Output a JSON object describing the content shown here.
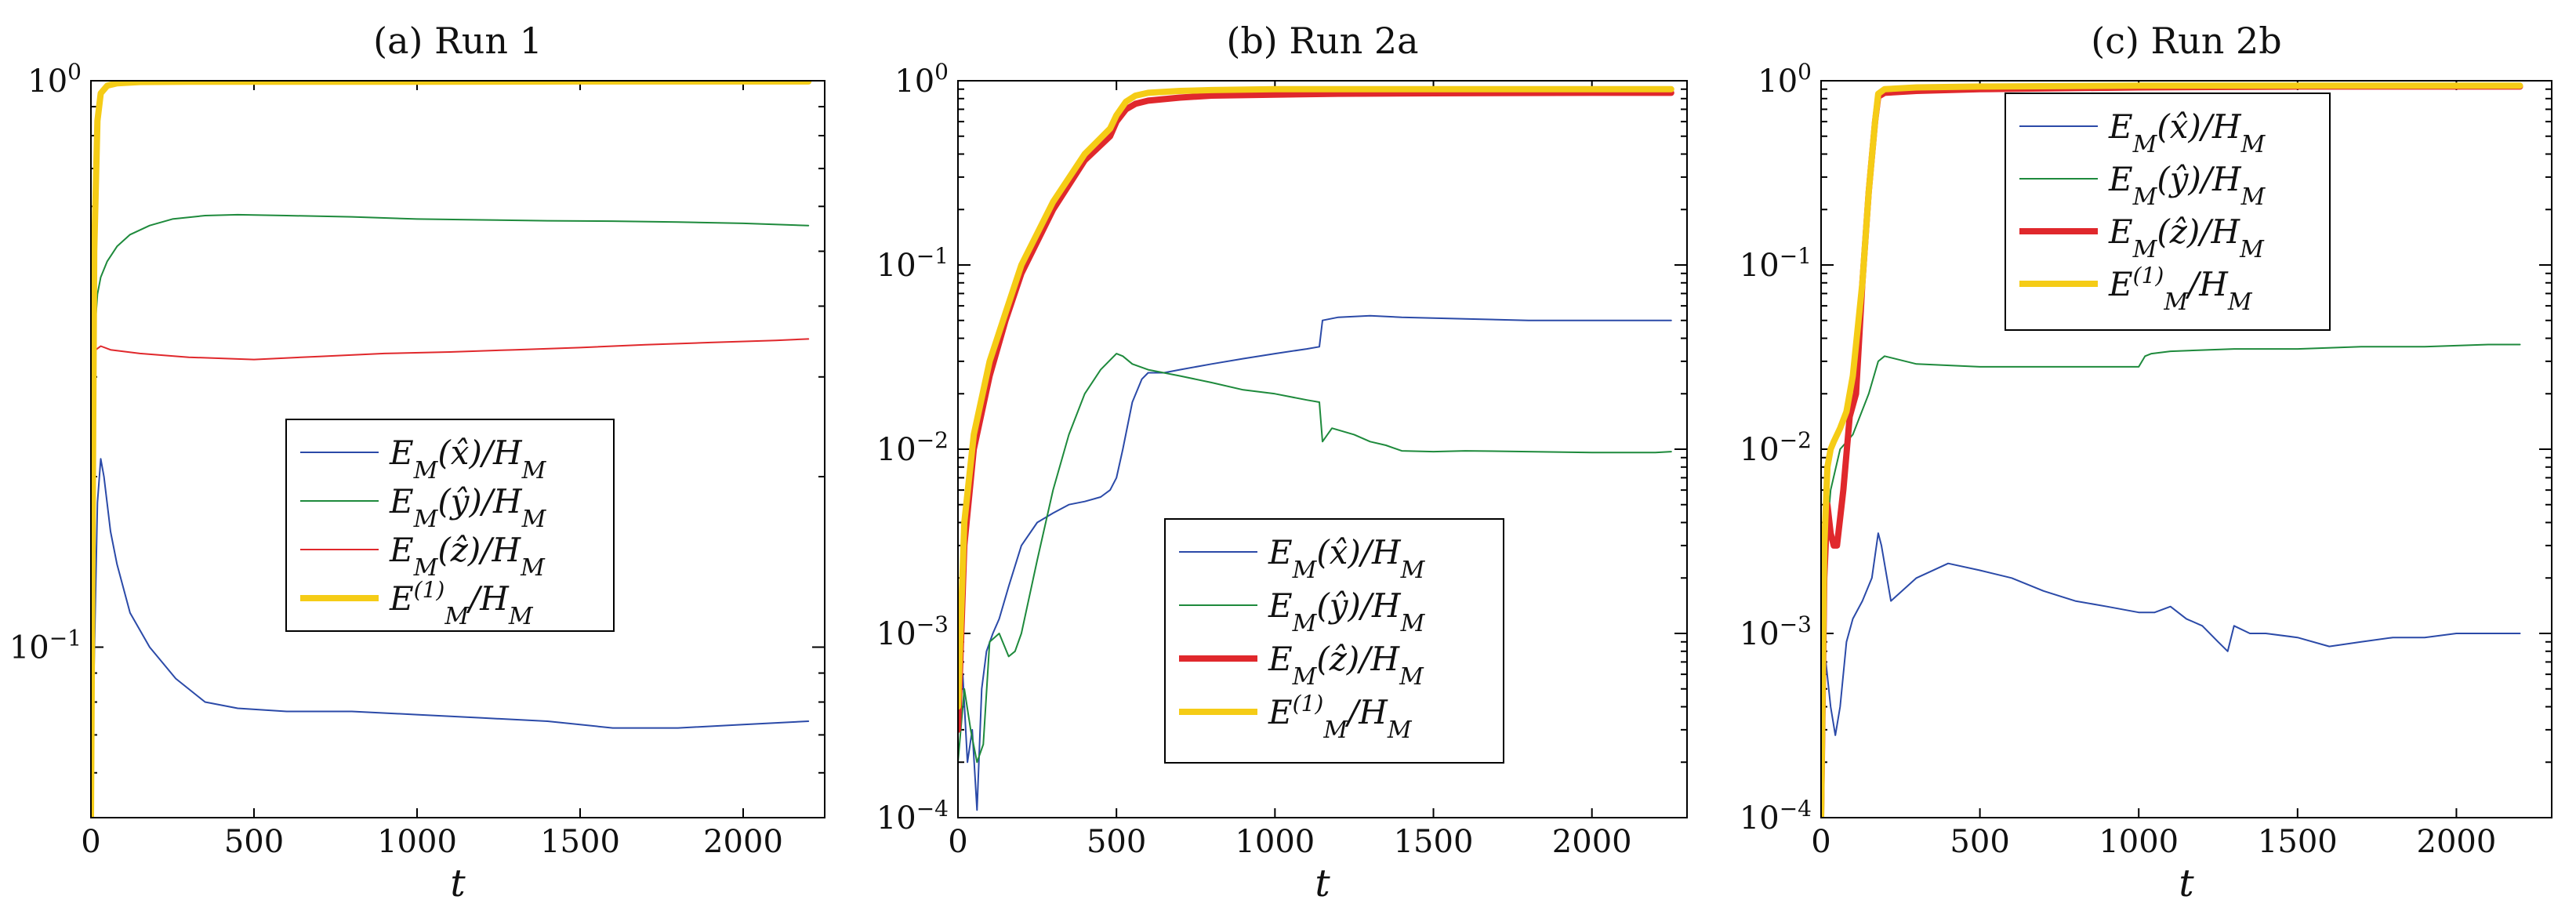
{
  "chart_data": [
    {
      "type": "line",
      "title": "(a) Run 1",
      "xlabel": "t",
      "ylabel": "",
      "yscale": "log",
      "xlim": [
        0,
        2250
      ],
      "ylim": [
        0.05,
        1
      ],
      "xticks": [
        0,
        500,
        1000,
        1500,
        2000
      ],
      "xtick_labels": [
        "0",
        "500",
        "1000",
        "1500",
        "2000"
      ],
      "yticks": [
        {
          "value": 0.1,
          "base": "10",
          "exp": "−1"
        },
        {
          "value": 1,
          "base": "10",
          "exp": "0"
        }
      ],
      "legend": "center-right",
      "series": [
        {
          "name": "E_M(x̂)/H_M",
          "color": "#2b4aa8",
          "width": 2,
          "x": [
            0,
            20,
            30,
            40,
            60,
            80,
            120,
            180,
            260,
            350,
            450,
            600,
            800,
            1000,
            1200,
            1400,
            1600,
            1800,
            2000,
            2200
          ],
          "y": [
            0.05,
            0.18,
            0.215,
            0.2,
            0.16,
            0.14,
            0.115,
            0.1,
            0.088,
            0.08,
            0.078,
            0.077,
            0.077,
            0.076,
            0.075,
            0.074,
            0.072,
            0.072,
            0.073,
            0.074
          ]
        },
        {
          "name": "E_M(ŷ)/H_M",
          "color": "#1e8a3c",
          "width": 2,
          "x": [
            0,
            10,
            20,
            30,
            50,
            80,
            120,
            180,
            250,
            350,
            450,
            600,
            800,
            1000,
            1200,
            1400,
            1600,
            1800,
            2000,
            2200
          ],
          "y": [
            0.05,
            0.35,
            0.42,
            0.45,
            0.48,
            0.51,
            0.535,
            0.555,
            0.57,
            0.578,
            0.58,
            0.578,
            0.575,
            0.57,
            0.568,
            0.566,
            0.565,
            0.563,
            0.56,
            0.555
          ]
        },
        {
          "name": "E_M(ẑ)/H_M",
          "color": "#e0282c",
          "width": 2,
          "x": [
            0,
            8,
            15,
            30,
            60,
            150,
            300,
            500,
            700,
            900,
            1100,
            1300,
            1500,
            1700,
            1900,
            2100,
            2200
          ],
          "y": [
            0.05,
            0.3,
            0.335,
            0.34,
            0.335,
            0.33,
            0.325,
            0.322,
            0.326,
            0.33,
            0.332,
            0.335,
            0.338,
            0.342,
            0.345,
            0.348,
            0.35
          ]
        },
        {
          "name": "E_M^(1)/H_M",
          "color": "#f5cc16",
          "width": 8,
          "x": [
            0,
            10,
            20,
            30,
            50,
            80,
            150,
            300,
            600,
            1000,
            1500,
            2200
          ],
          "y": [
            0.05,
            0.5,
            0.85,
            0.95,
            0.98,
            0.99,
            0.995,
            0.996,
            0.996,
            0.996,
            0.997,
            0.997
          ]
        }
      ]
    },
    {
      "type": "line",
      "title": "(b) Run 2a",
      "xlabel": "t",
      "ylabel": "",
      "yscale": "log",
      "xlim": [
        0,
        2300
      ],
      "ylim": [
        0.0001,
        1
      ],
      "xticks": [
        0,
        500,
        1000,
        1500,
        2000
      ],
      "xtick_labels": [
        "0",
        "500",
        "1000",
        "1500",
        "2000"
      ],
      "yticks": [
        {
          "value": 0.0001,
          "base": "10",
          "exp": "−4"
        },
        {
          "value": 0.001,
          "base": "10",
          "exp": "−3"
        },
        {
          "value": 0.01,
          "base": "10",
          "exp": "−2"
        },
        {
          "value": 0.1,
          "base": "10",
          "exp": "−1"
        },
        {
          "value": 1,
          "base": "10",
          "exp": "0"
        }
      ],
      "legend": "lower-center",
      "series": [
        {
          "name": "E_M(x̂)/H_M",
          "color": "#2b4aa8",
          "width": 2,
          "x": [
            0,
            15,
            30,
            45,
            60,
            75,
            90,
            110,
            130,
            160,
            200,
            250,
            300,
            350,
            400,
            450,
            480,
            500,
            520,
            550,
            580,
            600,
            650,
            700,
            800,
            900,
            1000,
            1100,
            1140,
            1150,
            1200,
            1300,
            1400,
            1600,
            1800,
            2000,
            2200,
            2250
          ],
          "y": [
            0.0003,
            0.0006,
            0.0002,
            0.0003,
            0.00011,
            0.0005,
            0.0008,
            0.001,
            0.0012,
            0.0018,
            0.003,
            0.004,
            0.0045,
            0.005,
            0.0052,
            0.0055,
            0.006,
            0.007,
            0.01,
            0.018,
            0.024,
            0.026,
            0.026,
            0.027,
            0.029,
            0.031,
            0.033,
            0.035,
            0.036,
            0.05,
            0.052,
            0.053,
            0.052,
            0.051,
            0.05,
            0.05,
            0.05,
            0.05
          ]
        },
        {
          "name": "E_M(ŷ)/H_M",
          "color": "#1e8a3c",
          "width": 2,
          "x": [
            0,
            20,
            40,
            60,
            80,
            100,
            130,
            160,
            180,
            200,
            250,
            300,
            350,
            400,
            450,
            500,
            520,
            550,
            600,
            700,
            800,
            900,
            1000,
            1100,
            1140,
            1150,
            1180,
            1250,
            1300,
            1350,
            1400,
            1500,
            1600,
            1800,
            2000,
            2200,
            2250
          ],
          "y": [
            0.0002,
            0.0005,
            0.0003,
            0.0002,
            0.00025,
            0.0009,
            0.001,
            0.00075,
            0.0008,
            0.001,
            0.0025,
            0.006,
            0.012,
            0.02,
            0.027,
            0.033,
            0.032,
            0.029,
            0.027,
            0.025,
            0.023,
            0.021,
            0.02,
            0.0185,
            0.018,
            0.011,
            0.013,
            0.012,
            0.011,
            0.0105,
            0.0098,
            0.0097,
            0.0098,
            0.0097,
            0.0096,
            0.0096,
            0.0097
          ]
        },
        {
          "name": "E_M(ẑ)/H_M",
          "color": "#e0282c",
          "width": 8,
          "x": [
            0,
            20,
            50,
            100,
            150,
            200,
            300,
            400,
            480,
            500,
            530,
            560,
            600,
            700,
            800,
            1000,
            1200,
            1500,
            2000,
            2250
          ],
          "y": [
            0.0003,
            0.003,
            0.01,
            0.025,
            0.05,
            0.09,
            0.2,
            0.37,
            0.5,
            0.6,
            0.7,
            0.75,
            0.78,
            0.81,
            0.83,
            0.84,
            0.85,
            0.855,
            0.86,
            0.86
          ]
        },
        {
          "name": "E_M^(1)/H_M",
          "color": "#f5cc16",
          "width": 8,
          "x": [
            0,
            20,
            50,
            100,
            150,
            200,
            300,
            400,
            480,
            500,
            530,
            560,
            600,
            700,
            800,
            1000,
            1200,
            1500,
            2000,
            2250
          ],
          "y": [
            0.0004,
            0.004,
            0.012,
            0.03,
            0.055,
            0.1,
            0.22,
            0.4,
            0.55,
            0.65,
            0.77,
            0.83,
            0.86,
            0.88,
            0.89,
            0.9,
            0.9,
            0.9,
            0.9,
            0.9
          ]
        }
      ]
    },
    {
      "type": "line",
      "title": "(c) Run 2b",
      "xlabel": "t",
      "ylabel": "",
      "yscale": "log",
      "xlim": [
        0,
        2300
      ],
      "ylim": [
        0.0001,
        1
      ],
      "xticks": [
        0,
        500,
        1000,
        1500,
        2000
      ],
      "xtick_labels": [
        "0",
        "500",
        "1000",
        "1500",
        "2000"
      ],
      "yticks": [
        {
          "value": 0.0001,
          "base": "10",
          "exp": "−4"
        },
        {
          "value": 0.001,
          "base": "10",
          "exp": "−3"
        },
        {
          "value": 0.01,
          "base": "10",
          "exp": "−2"
        },
        {
          "value": 0.1,
          "base": "10",
          "exp": "−1"
        },
        {
          "value": 1,
          "base": "10",
          "exp": "0"
        }
      ],
      "legend": "top-right",
      "series": [
        {
          "name": "E_M(x̂)/H_M",
          "color": "#2b4aa8",
          "width": 2,
          "x": [
            0,
            5,
            15,
            30,
            45,
            60,
            80,
            100,
            130,
            160,
            180,
            190,
            220,
            300,
            400,
            500,
            600,
            700,
            800,
            900,
            1000,
            1050,
            1100,
            1150,
            1200,
            1250,
            1280,
            1300,
            1350,
            1400,
            1500,
            1600,
            1700,
            1800,
            1900,
            2000,
            2100,
            2200
          ],
          "y": [
            0.0001,
            0.0008,
            0.0007,
            0.0004,
            0.00028,
            0.0004,
            0.0009,
            0.0012,
            0.0015,
            0.002,
            0.0035,
            0.003,
            0.0015,
            0.002,
            0.0024,
            0.0022,
            0.002,
            0.0017,
            0.0015,
            0.0014,
            0.0013,
            0.0013,
            0.0014,
            0.0012,
            0.0011,
            0.0009,
            0.0008,
            0.0011,
            0.001,
            0.001,
            0.00095,
            0.00085,
            0.0009,
            0.00095,
            0.00095,
            0.001,
            0.001,
            0.001
          ]
        },
        {
          "name": "E_M(ŷ)/H_M",
          "color": "#1e8a3c",
          "width": 2,
          "x": [
            0,
            15,
            30,
            60,
            100,
            150,
            180,
            200,
            300,
            500,
            700,
            900,
            1000,
            1020,
            1040,
            1100,
            1300,
            1500,
            1700,
            1900,
            2100,
            2200
          ],
          "y": [
            0.0001,
            0.003,
            0.006,
            0.01,
            0.012,
            0.02,
            0.03,
            0.032,
            0.029,
            0.028,
            0.028,
            0.028,
            0.028,
            0.032,
            0.033,
            0.034,
            0.035,
            0.035,
            0.036,
            0.036,
            0.037,
            0.037
          ]
        },
        {
          "name": "E_M(ẑ)/H_M",
          "color": "#e0282c",
          "width": 8,
          "x": [
            0,
            10,
            20,
            30,
            40,
            50,
            70,
            90,
            110,
            130,
            150,
            170,
            180,
            200,
            300,
            500,
            1000,
            1500,
            2000,
            2200
          ],
          "y": [
            0.0001,
            0.002,
            0.005,
            0.0035,
            0.003,
            0.003,
            0.006,
            0.015,
            0.02,
            0.08,
            0.25,
            0.6,
            0.82,
            0.86,
            0.88,
            0.9,
            0.92,
            0.93,
            0.93,
            0.93
          ]
        },
        {
          "name": "E_M^(1)/H_M",
          "color": "#f5cc16",
          "width": 8,
          "x": [
            0,
            10,
            20,
            30,
            40,
            60,
            80,
            100,
            130,
            150,
            170,
            180,
            200,
            300,
            500,
            1000,
            1500,
            2000,
            2200
          ],
          "y": [
            0.0001,
            0.003,
            0.008,
            0.01,
            0.011,
            0.013,
            0.016,
            0.025,
            0.08,
            0.25,
            0.6,
            0.85,
            0.9,
            0.92,
            0.93,
            0.94,
            0.94,
            0.94,
            0.94
          ]
        }
      ]
    }
  ]
}
